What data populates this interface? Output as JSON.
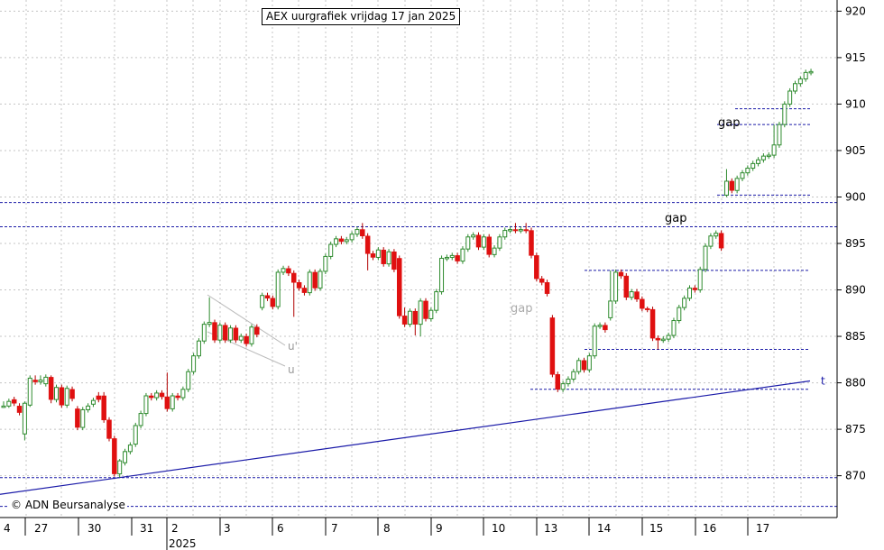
{
  "chart_data": {
    "type": "candlestick",
    "title": "AEX uurgrafiek vrijdag 17 jan 2025",
    "copyright": "© ADN Beursanalyse",
    "y_ticks": [
      870,
      875,
      880,
      885,
      890,
      895,
      900,
      905,
      910,
      915,
      920
    ],
    "ylim": [
      865.5,
      921.2
    ],
    "x_day_labels": [
      "4",
      "27",
      "30",
      "31",
      "2",
      "3",
      "6",
      "7",
      "8",
      "9",
      "10",
      "13",
      "14",
      "15",
      "16",
      "17"
    ],
    "year_label": "2025",
    "grid": true,
    "horizontal_levels": [
      {
        "value": 899.4,
        "style": "dashed",
        "full": true
      },
      {
        "value": 896.8,
        "style": "dashed",
        "full": true
      },
      {
        "value": 869.8,
        "style": "dashed",
        "full": true
      },
      {
        "value": 866.7,
        "style": "dashed",
        "full": true
      },
      {
        "value": 909.5,
        "style": "dashed",
        "from": "17"
      },
      {
        "value": 907.8,
        "style": "dashed",
        "from": "16"
      },
      {
        "value": 900.2,
        "style": "dashed",
        "from": "16"
      },
      {
        "value": 892.1,
        "style": "dashed",
        "from": "14"
      },
      {
        "value": 883.6,
        "style": "dashed",
        "from": "14"
      },
      {
        "value": 879.3,
        "style": "dashed",
        "from": "13"
      }
    ],
    "trendline": {
      "label": "t",
      "start": 868.0,
      "end": 880.2
    },
    "channel_labels": [
      "u'",
      "u"
    ],
    "annotations": [
      "gap",
      "gap",
      "gap"
    ],
    "candles": [
      [
        877.5,
        877.5,
        877.3,
        878.0
      ],
      [
        877.5,
        878.0,
        877.3,
        878.3
      ],
      [
        878.2,
        877.8,
        877.5,
        878.5
      ],
      [
        877.5,
        876.8,
        876.5,
        877.8
      ],
      [
        874.5,
        877.8,
        873.8,
        878.0
      ],
      [
        877.6,
        880.5,
        877.4,
        880.8
      ],
      [
        880.3,
        880.1,
        879.8,
        880.8
      ],
      [
        880.1,
        880.3,
        879.8,
        880.8
      ],
      [
        879.9,
        880.6,
        879.6,
        880.9
      ],
      [
        880.6,
        878.2,
        877.8,
        880.8
      ],
      [
        878.2,
        879.5,
        877.9,
        879.8
      ],
      [
        879.5,
        877.6,
        877.3,
        879.8
      ],
      [
        877.6,
        879.4,
        877.3,
        879.7
      ],
      [
        879.3,
        878.3,
        878.0,
        879.6
      ],
      [
        877.2,
        875.2,
        874.9,
        877.5
      ],
      [
        875.2,
        877.1,
        874.9,
        877.4
      ],
      [
        877.1,
        877.5,
        876.8,
        877.8
      ],
      [
        877.7,
        878.1,
        877.4,
        878.4
      ],
      [
        878.6,
        878.2,
        877.9,
        879.0
      ],
      [
        878.6,
        876.0,
        875.7,
        879.0
      ],
      [
        876.0,
        874.0,
        873.7,
        876.3
      ],
      [
        874.0,
        870.2,
        869.9,
        874.3
      ],
      [
        870.2,
        871.6,
        869.8,
        871.8
      ],
      [
        871.4,
        872.6,
        871.1,
        872.9
      ],
      [
        872.6,
        873.3,
        872.3,
        873.6
      ],
      [
        873.4,
        875.4,
        873.1,
        875.7
      ],
      [
        875.4,
        876.7,
        875.1,
        877.0
      ],
      [
        876.7,
        878.6,
        876.4,
        878.9
      ],
      [
        878.6,
        878.4,
        878.1,
        878.9
      ],
      [
        878.4,
        878.9,
        878.1,
        879.2
      ],
      [
        878.9,
        878.5,
        878.2,
        879.2
      ],
      [
        878.5,
        877.2,
        876.9,
        881.1
      ],
      [
        877.2,
        878.6,
        876.9,
        878.9
      ],
      [
        878.6,
        878.4,
        878.1,
        878.9
      ],
      [
        878.4,
        879.3,
        878.1,
        879.6
      ],
      [
        879.3,
        881.2,
        879.0,
        881.5
      ],
      [
        881.2,
        882.9,
        880.9,
        883.2
      ],
      [
        882.9,
        884.5,
        882.6,
        884.8
      ],
      [
        884.5,
        886.3,
        884.2,
        886.6
      ],
      [
        886.3,
        886.5,
        886.0,
        889.2
      ],
      [
        886.5,
        884.6,
        884.3,
        886.8
      ],
      [
        884.6,
        886.2,
        884.3,
        886.5
      ],
      [
        886.2,
        884.6,
        884.3,
        886.5
      ],
      [
        884.6,
        885.9,
        884.3,
        886.2
      ],
      [
        885.9,
        884.6,
        884.3,
        886.2
      ],
      [
        884.6,
        885.0,
        884.3,
        885.3
      ],
      [
        885.0,
        884.2,
        883.9,
        885.3
      ],
      [
        884.2,
        886.0,
        883.9,
        886.3
      ],
      [
        886.0,
        885.2,
        884.9,
        886.3
      ],
      [
        888.1,
        889.4,
        887.8,
        889.7
      ],
      [
        889.4,
        889.1,
        888.8,
        889.7
      ],
      [
        889.1,
        888.2,
        887.9,
        889.4
      ],
      [
        888.2,
        891.9,
        887.9,
        892.2
      ],
      [
        891.9,
        892.3,
        891.6,
        892.6
      ],
      [
        892.3,
        891.8,
        891.5,
        892.6
      ],
      [
        891.8,
        890.8,
        887.1,
        892.1
      ],
      [
        890.8,
        890.2,
        889.9,
        891.1
      ],
      [
        890.2,
        889.7,
        889.4,
        890.5
      ],
      [
        889.7,
        891.9,
        889.4,
        892.2
      ],
      [
        891.9,
        890.2,
        889.9,
        892.2
      ],
      [
        890.2,
        892.0,
        889.9,
        892.3
      ],
      [
        892.0,
        893.6,
        891.7,
        893.9
      ],
      [
        893.6,
        894.9,
        893.3,
        895.2
      ],
      [
        894.9,
        895.5,
        894.6,
        895.8
      ],
      [
        895.5,
        895.2,
        894.9,
        895.8
      ],
      [
        895.2,
        895.4,
        894.9,
        895.7
      ],
      [
        895.4,
        896.0,
        895.1,
        896.3
      ],
      [
        896.0,
        896.5,
        895.7,
        896.8
      ],
      [
        896.5,
        895.8,
        895.5,
        897.2
      ],
      [
        895.8,
        893.9,
        892.1,
        896.1
      ],
      [
        893.9,
        893.5,
        893.2,
        894.2
      ],
      [
        893.5,
        894.3,
        893.2,
        894.6
      ],
      [
        894.3,
        892.8,
        892.5,
        894.6
      ],
      [
        892.8,
        894.1,
        892.5,
        894.4
      ],
      [
        894.1,
        892.2,
        891.9,
        894.4
      ],
      [
        893.4,
        887.2,
        886.9,
        893.7
      ],
      [
        887.2,
        886.3,
        886.0,
        888.1
      ],
      [
        886.3,
        887.7,
        886.0,
        888.0
      ],
      [
        887.7,
        886.3,
        885.1,
        888.0
      ],
      [
        886.3,
        888.8,
        885.0,
        889.1
      ],
      [
        888.8,
        886.9,
        886.6,
        889.1
      ],
      [
        886.9,
        887.8,
        886.6,
        888.1
      ],
      [
        887.8,
        889.8,
        887.5,
        890.1
      ],
      [
        889.8,
        893.4,
        889.5,
        893.7
      ],
      [
        893.4,
        893.5,
        893.1,
        893.8
      ],
      [
        893.5,
        893.7,
        893.2,
        894.0
      ],
      [
        893.7,
        893.1,
        892.8,
        894.0
      ],
      [
        893.1,
        894.4,
        892.8,
        894.7
      ],
      [
        894.4,
        895.7,
        894.1,
        896.0
      ],
      [
        895.7,
        895.9,
        895.4,
        896.2
      ],
      [
        895.9,
        894.6,
        894.3,
        896.2
      ],
      [
        894.6,
        895.7,
        894.3,
        896.0
      ],
      [
        895.7,
        893.8,
        893.5,
        896.0
      ],
      [
        893.8,
        894.5,
        893.5,
        894.8
      ],
      [
        894.5,
        895.7,
        894.2,
        896.0
      ],
      [
        895.7,
        896.4,
        895.4,
        896.7
      ],
      [
        896.4,
        896.5,
        896.1,
        896.8
      ],
      [
        896.5,
        896.4,
        896.1,
        897.2
      ],
      [
        896.4,
        896.5,
        896.1,
        896.8
      ],
      [
        896.5,
        896.4,
        896.1,
        897.2
      ],
      [
        896.4,
        893.7,
        893.4,
        896.7
      ],
      [
        893.7,
        891.2,
        890.9,
        894.0
      ],
      [
        891.2,
        890.8,
        890.5,
        891.5
      ],
      [
        890.8,
        889.6,
        889.3,
        891.1
      ],
      [
        887.0,
        880.9,
        880.6,
        887.3
      ],
      [
        880.9,
        879.3,
        879.0,
        881.2
      ],
      [
        879.3,
        879.9,
        879.0,
        880.2
      ],
      [
        879.9,
        880.4,
        879.6,
        880.7
      ],
      [
        880.4,
        881.2,
        880.1,
        881.5
      ],
      [
        881.2,
        882.4,
        880.9,
        882.7
      ],
      [
        882.4,
        881.4,
        881.1,
        882.7
      ],
      [
        881.4,
        882.9,
        881.1,
        883.2
      ],
      [
        882.9,
        886.1,
        882.6,
        886.4
      ],
      [
        886.1,
        886.2,
        885.8,
        886.5
      ],
      [
        886.2,
        885.7,
        885.4,
        886.5
      ],
      [
        887.0,
        888.8,
        886.7,
        892.1
      ],
      [
        888.8,
        891.9,
        888.5,
        892.2
      ],
      [
        891.9,
        891.5,
        891.2,
        892.2
      ],
      [
        891.5,
        889.2,
        888.9,
        891.8
      ],
      [
        889.2,
        889.8,
        888.9,
        890.1
      ],
      [
        889.8,
        889.0,
        888.7,
        890.1
      ],
      [
        889.0,
        888.0,
        887.7,
        889.3
      ],
      [
        888.0,
        887.9,
        887.6,
        888.2
      ],
      [
        887.9,
        884.8,
        884.5,
        888.2
      ],
      [
        884.8,
        884.6,
        883.6,
        885.1
      ],
      [
        884.6,
        884.7,
        884.3,
        885.0
      ],
      [
        884.7,
        885.1,
        884.4,
        885.4
      ],
      [
        885.1,
        886.7,
        884.8,
        887.0
      ],
      [
        886.7,
        888.1,
        886.4,
        888.4
      ],
      [
        888.1,
        889.1,
        887.8,
        889.4
      ],
      [
        889.1,
        890.2,
        888.8,
        890.5
      ],
      [
        890.2,
        890.0,
        889.7,
        890.5
      ],
      [
        890.0,
        892.2,
        889.7,
        892.5
      ],
      [
        892.2,
        894.7,
        891.9,
        895.0
      ],
      [
        894.7,
        895.8,
        894.4,
        896.1
      ],
      [
        895.8,
        896.1,
        895.5,
        896.4
      ],
      [
        896.1,
        894.5,
        894.2,
        896.4
      ],
      [
        900.2,
        901.7,
        900.0,
        903.0
      ],
      [
        901.7,
        900.7,
        900.4,
        902.0
      ],
      [
        900.7,
        902.0,
        900.4,
        902.3
      ],
      [
        902.0,
        902.6,
        901.7,
        902.9
      ],
      [
        902.6,
        903.1,
        902.3,
        903.4
      ],
      [
        903.1,
        903.6,
        902.8,
        903.9
      ],
      [
        903.6,
        904.0,
        903.3,
        904.3
      ],
      [
        904.0,
        904.4,
        903.7,
        904.7
      ],
      [
        904.4,
        904.5,
        904.1,
        904.8
      ],
      [
        904.5,
        905.6,
        904.2,
        907.8
      ],
      [
        905.6,
        907.8,
        905.3,
        908.1
      ],
      [
        907.8,
        910.0,
        907.5,
        910.3
      ],
      [
        910.0,
        911.4,
        909.7,
        911.7
      ],
      [
        911.4,
        912.2,
        911.1,
        912.5
      ],
      [
        912.2,
        912.7,
        911.9,
        913.0
      ],
      [
        912.7,
        913.4,
        912.4,
        913.7
      ],
      [
        913.4,
        913.5,
        913.1,
        913.8
      ],
      [
        913.5,
        914.8,
        913.2,
        915.1
      ],
      [
        914.8,
        915.2,
        914.5,
        917.5
      ],
      [
        915.2,
        914.5,
        914.2,
        915.5
      ],
      [
        914.5,
        914.0,
        913.7,
        914.8
      ]
    ]
  }
}
